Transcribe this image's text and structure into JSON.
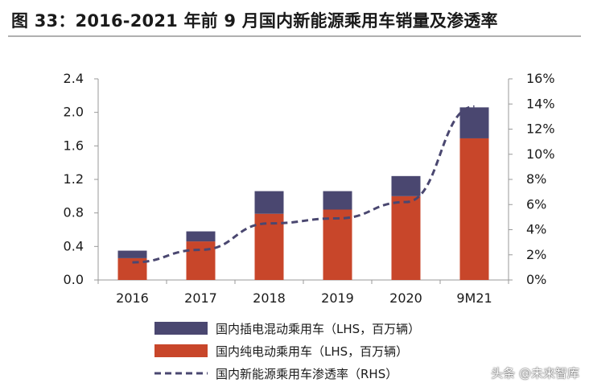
{
  "figure_title": "图 33：2016-2021 年前 9 月国内新能源乘用车销量及渗透率",
  "watermark": "头条 @未来智库",
  "colors": {
    "phev": "#4a4770",
    "bev": "#c8462a",
    "penetration": "#4a4770",
    "axis": "#999999"
  },
  "chart_data": {
    "type": "bar",
    "stacked": true,
    "categories": [
      "2016",
      "2017",
      "2018",
      "2019",
      "2020",
      "9M21"
    ],
    "series": [
      {
        "name": "国内纯电动乘用车（LHS，百万辆）",
        "values": [
          0.26,
          0.46,
          0.79,
          0.84,
          1.0,
          1.69
        ]
      },
      {
        "name": "国内插电混动乘用车（LHS，百万辆）",
        "values": [
          0.09,
          0.12,
          0.27,
          0.22,
          0.24,
          0.37
        ]
      }
    ],
    "line_series": {
      "name": "国内新能源乘用车渗透率（RHS）",
      "axis": "right",
      "values": [
        1.4,
        2.4,
        4.5,
        4.9,
        6.2,
        13.8
      ]
    },
    "ylim": [
      0,
      2.4
    ],
    "yticks": [
      "0.0",
      "0.4",
      "0.8",
      "1.2",
      "1.6",
      "2.0",
      "2.4"
    ],
    "y2lim": [
      0,
      16
    ],
    "y2ticks": [
      "0%",
      "2%",
      "4%",
      "6%",
      "8%",
      "10%",
      "12%",
      "14%",
      "16%"
    ],
    "grid": false,
    "legend_placement": "bottom"
  }
}
